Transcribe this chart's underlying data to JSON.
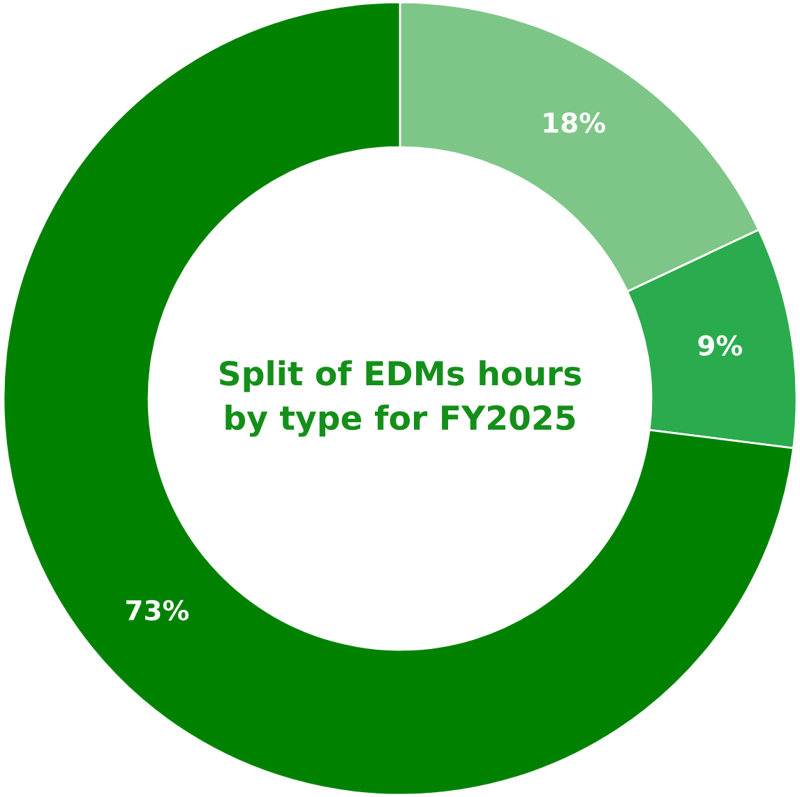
{
  "chart_data": {
    "type": "donut",
    "title": "Split of EDMs hours\nby type for FY2025",
    "categories": [
      null,
      null,
      null
    ],
    "values": [
      18,
      9,
      73
    ],
    "colors": [
      "#7dc687",
      "#2aab4e",
      "#008200"
    ],
    "value_labels": [
      "18%",
      "9%",
      "73%"
    ]
  }
}
